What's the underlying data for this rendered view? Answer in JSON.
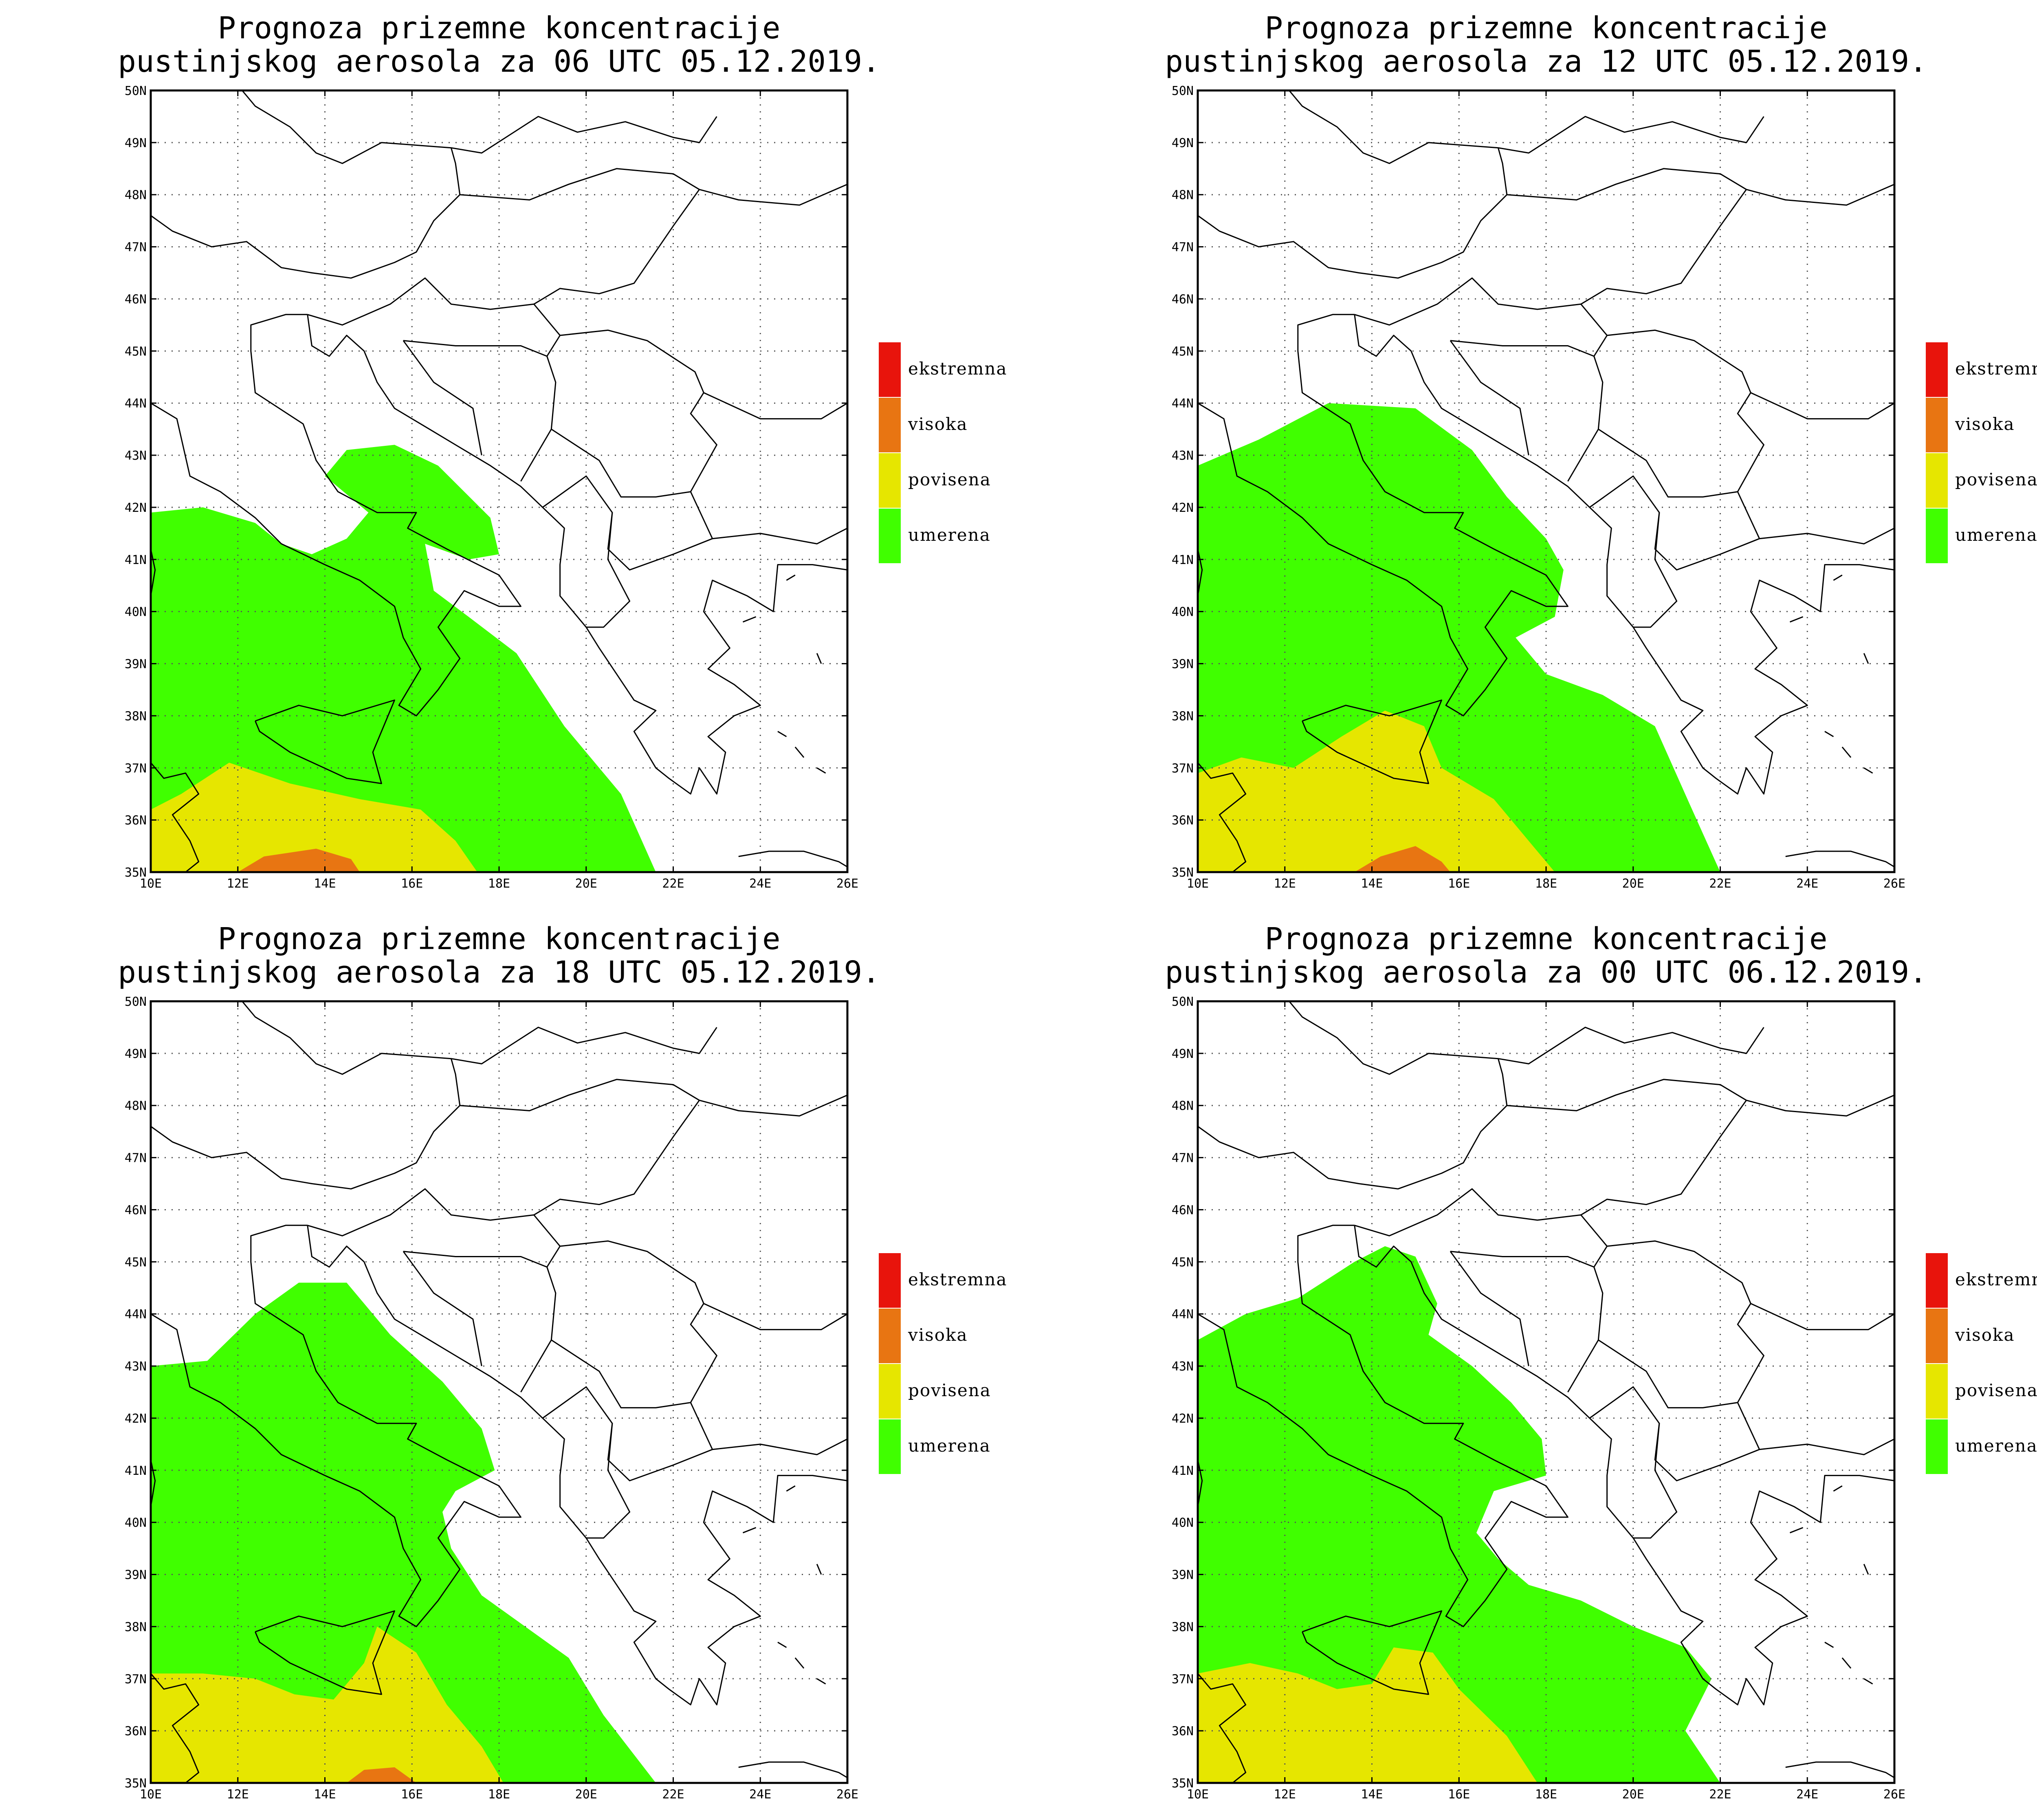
{
  "colors": {
    "ekstremna": "#e8140c",
    "visoka": "#e87512",
    "povisena": "#e6e600",
    "umerena": "#40ff00",
    "coast": "#000000",
    "grid": "#555555"
  },
  "legend": [
    {
      "key": "ekstremna",
      "label": "ekstremna"
    },
    {
      "key": "visoka",
      "label": "visoka"
    },
    {
      "key": "povisena",
      "label": "povisena"
    },
    {
      "key": "umerena",
      "label": "umerena"
    }
  ],
  "axes": {
    "lon_labels": [
      "10E",
      "12E",
      "14E",
      "16E",
      "18E",
      "20E",
      "22E",
      "24E",
      "26E"
    ],
    "lat_labels": [
      "50N",
      "49N",
      "48N",
      "47N",
      "46N",
      "45N",
      "44N",
      "43N",
      "42N",
      "41N",
      "40N",
      "39N",
      "38N",
      "37N",
      "36N",
      "35N"
    ],
    "lon_range": [
      10,
      26
    ],
    "lat_range": [
      35,
      50
    ]
  },
  "panels": [
    {
      "title_line1": "Prognoza prizemne koncentracije",
      "title_line2": "pustinjskog aerosola za 06 UTC 05.12.2019.",
      "zones": {
        "umerena": [
          [
            [
              10,
              41.9
            ],
            [
              11.2,
              42.0
            ],
            [
              12.4,
              41.7
            ],
            [
              13.0,
              41.3
            ],
            [
              13.7,
              41.1
            ],
            [
              14.5,
              41.4
            ],
            [
              15.0,
              41.9
            ],
            [
              14.0,
              42.6
            ],
            [
              14.5,
              43.1
            ],
            [
              15.6,
              43.2
            ],
            [
              16.6,
              42.8
            ],
            [
              17.8,
              41.8
            ],
            [
              18.0,
              41.1
            ],
            [
              17.3,
              41.0
            ],
            [
              16.3,
              41.3
            ],
            [
              16.5,
              40.4
            ],
            [
              17.3,
              39.9
            ],
            [
              18.4,
              39.2
            ],
            [
              19.5,
              37.8
            ],
            [
              20.8,
              36.5
            ],
            [
              21.6,
              35.0
            ],
            [
              10,
              35.0
            ]
          ]
        ],
        "povisena": [
          [
            [
              10,
              36.2
            ],
            [
              10.7,
              36.5
            ],
            [
              11.8,
              37.1
            ],
            [
              13.2,
              36.7
            ],
            [
              14.8,
              36.4
            ],
            [
              16.2,
              36.2
            ],
            [
              17.0,
              35.6
            ],
            [
              17.5,
              35.0
            ],
            [
              10,
              35.0
            ]
          ]
        ],
        "visoka": [
          [
            [
              12.0,
              35.0
            ],
            [
              12.6,
              35.3
            ],
            [
              13.8,
              35.45
            ],
            [
              14.6,
              35.25
            ],
            [
              14.8,
              35.0
            ]
          ]
        ]
      }
    },
    {
      "title_line1": "Prognoza prizemne koncentracije",
      "title_line2": "pustinjskog aerosola za 12 UTC 05.12.2019.",
      "zones": {
        "umerena": [
          [
            [
              10,
              42.8
            ],
            [
              11.4,
              43.3
            ],
            [
              13.0,
              44.0
            ],
            [
              15.0,
              43.9
            ],
            [
              16.3,
              43.1
            ],
            [
              17.1,
              42.2
            ],
            [
              18.0,
              41.4
            ],
            [
              18.4,
              40.8
            ],
            [
              18.2,
              39.9
            ],
            [
              17.3,
              39.5
            ],
            [
              18.0,
              38.8
            ],
            [
              19.3,
              38.4
            ],
            [
              20.5,
              37.8
            ],
            [
              21.3,
              36.3
            ],
            [
              22.0,
              35.0
            ],
            [
              10,
              35.0
            ]
          ]
        ],
        "povisena": [
          [
            [
              10,
              36.9
            ],
            [
              11.0,
              37.2
            ],
            [
              12.2,
              37.0
            ],
            [
              13.3,
              37.6
            ],
            [
              14.3,
              38.1
            ],
            [
              15.2,
              37.8
            ],
            [
              15.6,
              37.0
            ],
            [
              16.8,
              36.4
            ],
            [
              17.7,
              35.5
            ],
            [
              18.2,
              35.0
            ],
            [
              10,
              35.0
            ]
          ]
        ],
        "visoka": [
          [
            [
              13.6,
              35.0
            ],
            [
              14.2,
              35.3
            ],
            [
              15.0,
              35.5
            ],
            [
              15.6,
              35.2
            ],
            [
              15.8,
              35.0
            ]
          ]
        ]
      }
    },
    {
      "title_line1": "Prognoza prizemne koncentracije",
      "title_line2": "pustinjskog aerosola za 18 UTC 05.12.2019.",
      "zones": {
        "umerena": [
          [
            [
              10,
              43.0
            ],
            [
              11.3,
              43.1
            ],
            [
              12.4,
              44.0
            ],
            [
              13.4,
              44.6
            ],
            [
              14.5,
              44.6
            ],
            [
              15.5,
              43.6
            ],
            [
              16.7,
              42.7
            ],
            [
              17.6,
              41.8
            ],
            [
              17.9,
              41.0
            ],
            [
              17.0,
              40.6
            ],
            [
              16.7,
              40.2
            ],
            [
              16.9,
              39.5
            ],
            [
              17.6,
              38.6
            ],
            [
              18.6,
              38.0
            ],
            [
              19.6,
              37.4
            ],
            [
              20.4,
              36.3
            ],
            [
              21.6,
              35.0
            ],
            [
              10,
              35.0
            ]
          ]
        ],
        "povisena": [
          [
            [
              10,
              37.1
            ],
            [
              11.2,
              37.1
            ],
            [
              12.4,
              37.0
            ],
            [
              13.3,
              36.7
            ],
            [
              14.2,
              36.6
            ],
            [
              14.9,
              37.3
            ],
            [
              15.2,
              38.0
            ],
            [
              16.1,
              37.5
            ],
            [
              16.8,
              36.5
            ],
            [
              17.6,
              35.7
            ],
            [
              18.1,
              35.0
            ],
            [
              10,
              35.0
            ]
          ]
        ],
        "visoka": [
          [
            [
              14.5,
              35.0
            ],
            [
              14.9,
              35.25
            ],
            [
              15.6,
              35.3
            ],
            [
              16.1,
              35.0
            ]
          ]
        ]
      }
    },
    {
      "title_line1": "Prognoza prizemne koncentracije",
      "title_line2": "pustinjskog aerosola za 00 UTC 06.12.2019.",
      "zones": {
        "umerena": [
          [
            [
              10,
              43.5
            ],
            [
              11.1,
              44.0
            ],
            [
              12.3,
              44.3
            ],
            [
              13.6,
              45.0
            ],
            [
              14.3,
              45.3
            ],
            [
              15.0,
              45.1
            ],
            [
              15.5,
              44.2
            ],
            [
              15.3,
              43.6
            ],
            [
              16.3,
              43.0
            ],
            [
              17.2,
              42.3
            ],
            [
              17.9,
              41.6
            ],
            [
              18.0,
              40.9
            ],
            [
              16.8,
              40.6
            ],
            [
              16.4,
              39.8
            ],
            [
              16.9,
              39.3
            ],
            [
              17.6,
              38.8
            ],
            [
              18.8,
              38.5
            ],
            [
              20.0,
              38.0
            ],
            [
              21.2,
              37.6
            ],
            [
              21.8,
              37.0
            ],
            [
              21.2,
              36.0
            ],
            [
              22.0,
              35.0
            ],
            [
              10,
              35.0
            ]
          ]
        ],
        "povisena": [
          [
            [
              10,
              37.1
            ],
            [
              11.2,
              37.3
            ],
            [
              12.3,
              37.1
            ],
            [
              13.2,
              36.8
            ],
            [
              14.0,
              36.9
            ],
            [
              14.5,
              37.6
            ],
            [
              15.4,
              37.5
            ],
            [
              16.0,
              36.8
            ],
            [
              17.1,
              35.9
            ],
            [
              17.8,
              35.0
            ],
            [
              10,
              35.0
            ]
          ]
        ],
        "visoka": []
      }
    }
  ]
}
